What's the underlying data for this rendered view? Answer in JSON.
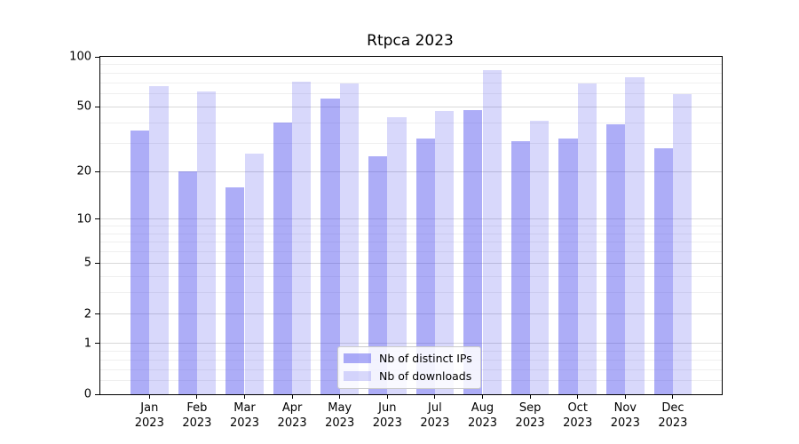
{
  "title": "Rtpca 2023",
  "chart_data": {
    "type": "bar",
    "title": "Rtpca 2023",
    "categories": [
      "Jan 2023",
      "Feb 2023",
      "Mar 2023",
      "Apr 2023",
      "May 2023",
      "Jun 2023",
      "Jul 2023",
      "Aug 2023",
      "Sep 2023",
      "Oct 2023",
      "Nov 2023",
      "Dec 2023"
    ],
    "x_tick_labels": [
      {
        "month": "Jan",
        "year": "2023"
      },
      {
        "month": "Feb",
        "year": "2023"
      },
      {
        "month": "Mar",
        "year": "2023"
      },
      {
        "month": "Apr",
        "year": "2023"
      },
      {
        "month": "May",
        "year": "2023"
      },
      {
        "month": "Jun",
        "year": "2023"
      },
      {
        "month": "Jul",
        "year": "2023"
      },
      {
        "month": "Aug",
        "year": "2023"
      },
      {
        "month": "Sep",
        "year": "2023"
      },
      {
        "month": "Oct",
        "year": "2023"
      },
      {
        "month": "Nov",
        "year": "2023"
      },
      {
        "month": "Dec",
        "year": "2023"
      }
    ],
    "series": [
      {
        "name": "Nb of distinct IPs",
        "color": "rgba(60,60,235,0.42)",
        "values": [
          36,
          20,
          16,
          40,
          56,
          25,
          32,
          48,
          31,
          32,
          39,
          28
        ]
      },
      {
        "name": "Nb of downloads",
        "color": "rgba(60,60,235,0.20)",
        "values": [
          67,
          62,
          26,
          71,
          69,
          43,
          47,
          83,
          41,
          69,
          75,
          60
        ]
      }
    ],
    "ylim": [
      0,
      100
    ],
    "yscale": "log-like (y maps as log10(1+v))",
    "y_ticks": [
      {
        "v": 100,
        "label": "100"
      },
      {
        "v": 50,
        "label": "50"
      },
      {
        "v": 20,
        "label": "20"
      },
      {
        "v": 10,
        "label": "10"
      },
      {
        "v": 5,
        "label": "5"
      },
      {
        "v": 2,
        "label": "2"
      },
      {
        "v": 1,
        "label": "1"
      },
      {
        "v": 0,
        "label": "0"
      }
    ],
    "y_minor_gridlines": [
      0.2,
      0.4,
      0.6,
      0.8,
      3,
      4,
      6,
      7,
      8,
      9,
      30,
      40,
      60,
      70,
      80,
      90
    ],
    "grid": true,
    "legend_position": "lower center"
  },
  "legend": {
    "items": [
      {
        "label": "Nb of distinct IPs"
      },
      {
        "label": "Nb of downloads"
      }
    ]
  },
  "colors": {
    "grid_major": "#d9d9d9",
    "grid_minor": "#efefef",
    "axis": "#000000",
    "legend_border": "#cccccc",
    "background": "#ffffff"
  }
}
